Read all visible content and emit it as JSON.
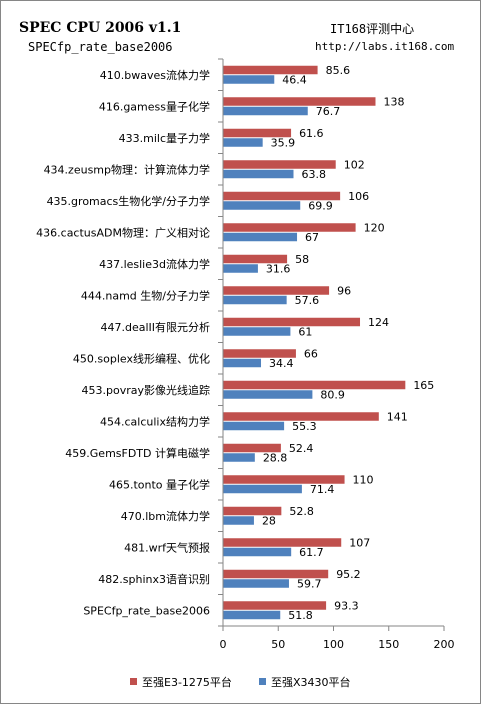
{
  "header": {
    "title": "SPEC CPU 2006 v1.1",
    "subtitle": "SPECfp_rate_base2006",
    "brand": "IT168评测中心",
    "url": "http://labs.it168.com"
  },
  "colors": {
    "series1": "#C0504D",
    "series2": "#4F81BD",
    "axis": "#868686",
    "border": "#868686"
  },
  "chart_data": {
    "type": "bar",
    "orientation": "horizontal",
    "categories": [
      "410.bwaves流体力学",
      "416.gamess量子化学",
      "433.milc量子力学",
      "434.zeusmp物理：计算流体力学",
      "435.gromacs生物化学/分子力学",
      "436.cactusADM物理：广义相对论",
      "437.leslie3d流体力学",
      "444.namd 生物/分子力学",
      "447.dealII有限元分析",
      "450.soplex线形编程、优化",
      "453.povray影像光线追踪",
      "454.calculix结构力学",
      "459.GemsFDTD 计算电磁学",
      "465.tonto 量子化学",
      "470.lbm流体力学",
      "481.wrf天气预报",
      "482.sphinx3语音识别",
      "SPECfp_rate_base2006"
    ],
    "series": [
      {
        "name": "至强E3-1275平台",
        "values": [
          85.6,
          138,
          61.6,
          102,
          106,
          120,
          58,
          96,
          124,
          66,
          165,
          141,
          52.4,
          110,
          52.8,
          107,
          95.2,
          93.3
        ],
        "labels": [
          "85.6",
          "138",
          "61.6",
          "102",
          "106",
          "120",
          "58",
          "96",
          "124",
          "66",
          "165",
          "141",
          "52.4",
          "110",
          "52.8",
          "107",
          "95.2",
          "93.3"
        ]
      },
      {
        "name": "至强X3430平台",
        "values": [
          46.4,
          76.7,
          35.9,
          63.8,
          69.9,
          67,
          31.6,
          57.6,
          61,
          34.4,
          80.9,
          55.3,
          28.8,
          71.4,
          28,
          61.7,
          59.7,
          51.8
        ],
        "labels": [
          "46.4",
          "76.7",
          "35.9",
          "63.8",
          "69.9",
          "67",
          "31.6",
          "57.6",
          "61",
          "34.4",
          "80.9",
          "55.3",
          "28.8",
          "71.4",
          "28",
          "61.7",
          "59.7",
          "51.8"
        ]
      }
    ],
    "xlim": [
      0,
      200
    ],
    "x_ticks": [
      0,
      50,
      100,
      150,
      200
    ],
    "x_tick_labels": [
      "0",
      "50",
      "100",
      "150",
      "200"
    ],
    "grid": false,
    "legend_position": "bottom"
  }
}
